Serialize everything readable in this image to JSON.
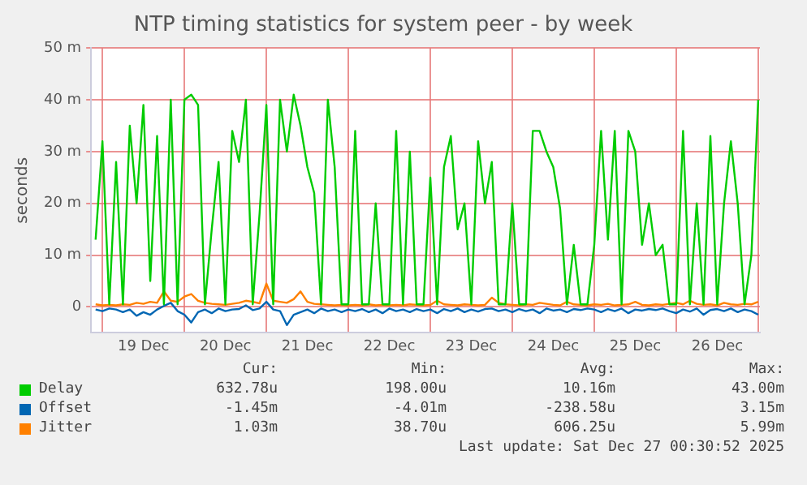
{
  "chart_data": {
    "type": "line",
    "title": "NTP timing statistics for system peer - by week",
    "ylabel": "seconds",
    "x": [
      "2025-12-18T22:00",
      "2025-12-19T00:00",
      "2025-12-19T02:00",
      "2025-12-19T04:00",
      "2025-12-19T06:00",
      "2025-12-19T08:00",
      "2025-12-19T10:00",
      "2025-12-19T12:00",
      "2025-12-19T14:00",
      "2025-12-19T16:00",
      "2025-12-19T18:00",
      "2025-12-19T20:00",
      "2025-12-19T22:00",
      "2025-12-20T00:00",
      "2025-12-20T02:00",
      "2025-12-20T04:00",
      "2025-12-20T06:00",
      "2025-12-20T08:00",
      "2025-12-20T10:00",
      "2025-12-20T12:00",
      "2025-12-20T14:00",
      "2025-12-20T16:00",
      "2025-12-20T18:00",
      "2025-12-20T20:00",
      "2025-12-20T22:00",
      "2025-12-21T00:00",
      "2025-12-21T02:00",
      "2025-12-21T04:00",
      "2025-12-21T06:00",
      "2025-12-21T08:00",
      "2025-12-21T10:00",
      "2025-12-21T12:00",
      "2025-12-21T14:00",
      "2025-12-21T16:00",
      "2025-12-21T18:00",
      "2025-12-21T20:00",
      "2025-12-21T22:00",
      "2025-12-22T00:00",
      "2025-12-22T02:00",
      "2025-12-22T04:00",
      "2025-12-22T06:00",
      "2025-12-22T08:00",
      "2025-12-22T10:00",
      "2025-12-22T12:00",
      "2025-12-22T14:00",
      "2025-12-22T16:00",
      "2025-12-22T18:00",
      "2025-12-22T20:00",
      "2025-12-22T22:00",
      "2025-12-23T00:00",
      "2025-12-23T02:00",
      "2025-12-23T04:00",
      "2025-12-23T06:00",
      "2025-12-23T08:00",
      "2025-12-23T10:00",
      "2025-12-23T12:00",
      "2025-12-23T14:00",
      "2025-12-23T16:00",
      "2025-12-23T18:00",
      "2025-12-23T20:00",
      "2025-12-23T22:00",
      "2025-12-24T00:00",
      "2025-12-24T02:00",
      "2025-12-24T04:00",
      "2025-12-24T06:00",
      "2025-12-24T08:00",
      "2025-12-24T10:00",
      "2025-12-24T12:00",
      "2025-12-24T14:00",
      "2025-12-24T16:00",
      "2025-12-24T18:00",
      "2025-12-24T20:00",
      "2025-12-24T22:00",
      "2025-12-25T00:00",
      "2025-12-25T02:00",
      "2025-12-25T04:00",
      "2025-12-25T06:00",
      "2025-12-25T08:00",
      "2025-12-25T10:00",
      "2025-12-25T12:00",
      "2025-12-25T14:00",
      "2025-12-25T16:00",
      "2025-12-25T18:00",
      "2025-12-25T20:00",
      "2025-12-25T22:00",
      "2025-12-26T00:00",
      "2025-12-26T02:00",
      "2025-12-26T04:00",
      "2025-12-26T06:00",
      "2025-12-26T08:00",
      "2025-12-26T10:00",
      "2025-12-26T12:00",
      "2025-12-26T14:00",
      "2025-12-26T16:00",
      "2025-12-26T18:00",
      "2025-12-26T20:00",
      "2025-12-26T22:00",
      "2025-12-27T00:00"
    ],
    "series": [
      {
        "name": "Delay",
        "color": "#00cc00",
        "values": [
          13,
          32,
          0.5,
          28,
          0.5,
          35,
          20,
          39,
          5,
          33,
          0.5,
          40,
          0.5,
          40,
          41,
          39,
          0.5,
          15,
          28,
          0.5,
          34,
          28,
          40,
          0.5,
          18,
          39,
          0.5,
          40,
          30,
          41,
          35,
          27,
          22,
          0.5,
          40,
          27,
          0.5,
          0.5,
          34,
          0.5,
          0.5,
          20,
          0.5,
          0.5,
          34,
          0.5,
          30,
          0.5,
          0.5,
          25,
          0.5,
          27,
          33,
          15,
          20,
          0.5,
          32,
          20,
          28,
          0.5,
          0.5,
          20,
          0.5,
          0.5,
          34,
          34,
          30,
          27,
          19,
          0.5,
          12,
          0.5,
          0.5,
          12,
          34,
          13,
          34,
          0.5,
          34,
          30,
          12,
          20,
          10,
          12,
          0.5,
          0.5,
          34,
          0.5,
          20,
          0.5,
          33,
          0.5,
          20,
          32,
          20,
          0.5,
          10,
          40
        ]
      },
      {
        "name": "Offset",
        "color": "#0066b3",
        "values": [
          -0.5,
          -0.8,
          -0.3,
          -0.5,
          -1.0,
          -0.5,
          -1.7,
          -1.0,
          -1.5,
          -0.5,
          0.2,
          0.8,
          -0.8,
          -1.5,
          -3.0,
          -1.0,
          -0.5,
          -1.2,
          -0.3,
          -0.8,
          -0.5,
          -0.4,
          0.3,
          -0.6,
          -0.3,
          1.0,
          -0.5,
          -0.8,
          -3.5,
          -1.5,
          -1.0,
          -0.5,
          -1.2,
          -0.3,
          -0.8,
          -0.5,
          -1.0,
          -0.5,
          -0.8,
          -0.4,
          -1.0,
          -0.5,
          -1.2,
          -0.3,
          -0.8,
          -0.5,
          -1.0,
          -0.4,
          -0.8,
          -0.5,
          -1.2,
          -0.4,
          -0.8,
          -0.3,
          -1.0,
          -0.5,
          -0.9,
          -0.4,
          -0.3,
          -0.8,
          -0.5,
          -1.0,
          -0.4,
          -0.8,
          -0.5,
          -1.2,
          -0.3,
          -0.7,
          -0.5,
          -1.0,
          -0.4,
          -0.6,
          -0.3,
          -0.5,
          -1.0,
          -0.4,
          -0.8,
          -0.3,
          -1.2,
          -0.5,
          -0.7,
          -0.4,
          -0.6,
          -0.3,
          -0.8,
          -1.2,
          -0.5,
          -0.9,
          -0.3,
          -1.5,
          -0.6,
          -0.4,
          -0.8,
          -0.3,
          -1.0,
          -0.5,
          -0.8,
          -1.5
        ]
      },
      {
        "name": "Jitter",
        "color": "#ff8000",
        "values": [
          0.5,
          0.3,
          0.4,
          0.3,
          0.5,
          0.4,
          0.8,
          0.6,
          1.0,
          0.8,
          3.0,
          1.2,
          1.0,
          2.0,
          2.5,
          1.2,
          0.8,
          0.6,
          0.5,
          0.4,
          0.6,
          0.8,
          1.2,
          1.0,
          0.7,
          4.5,
          1.2,
          1.0,
          0.8,
          1.5,
          3.0,
          1.0,
          0.6,
          0.5,
          0.4,
          0.3,
          0.4,
          0.3,
          0.4,
          0.3,
          0.5,
          0.3,
          0.4,
          0.3,
          0.4,
          0.3,
          0.5,
          0.4,
          0.3,
          0.4,
          1.2,
          0.5,
          0.4,
          0.3,
          0.5,
          0.4,
          0.3,
          0.4,
          1.8,
          0.8,
          0.5,
          0.4,
          0.3,
          0.5,
          0.4,
          0.8,
          0.6,
          0.4,
          0.3,
          1.0,
          0.5,
          0.4,
          0.3,
          0.5,
          0.4,
          0.6,
          0.3,
          0.4,
          0.5,
          1.0,
          0.4,
          0.3,
          0.5,
          0.4,
          0.6,
          0.8,
          0.5,
          1.2,
          0.6,
          0.4,
          0.5,
          0.3,
          0.8,
          0.5,
          0.4,
          0.6,
          0.5,
          1.0
        ]
      }
    ],
    "xlim": [
      "2025-12-18T20:40",
      "2025-12-27T00:30"
    ],
    "xticks": [
      {
        "value": "2025-12-19T00:00",
        "label": null
      },
      {
        "value": "2025-12-19T12:00",
        "label": "19 Dec"
      },
      {
        "value": "2025-12-20T00:00",
        "label": null
      },
      {
        "value": "2025-12-20T12:00",
        "label": "20 Dec"
      },
      {
        "value": "2025-12-21T00:00",
        "label": null
      },
      {
        "value": "2025-12-21T12:00",
        "label": "21 Dec"
      },
      {
        "value": "2025-12-22T00:00",
        "label": null
      },
      {
        "value": "2025-12-22T12:00",
        "label": "22 Dec"
      },
      {
        "value": "2025-12-23T00:00",
        "label": null
      },
      {
        "value": "2025-12-23T12:00",
        "label": "23 Dec"
      },
      {
        "value": "2025-12-24T00:00",
        "label": null
      },
      {
        "value": "2025-12-24T12:00",
        "label": "24 Dec"
      },
      {
        "value": "2025-12-25T00:00",
        "label": null
      },
      {
        "value": "2025-12-25T12:00",
        "label": "25 Dec"
      },
      {
        "value": "2025-12-26T00:00",
        "label": null
      },
      {
        "value": "2025-12-26T12:00",
        "label": "26 Dec"
      },
      {
        "value": "2025-12-27T00:00",
        "label": null
      }
    ],
    "ylim": [
      -5,
      50
    ],
    "yticks": [
      0,
      {
        "value": 10,
        "label": "10 m"
      },
      {
        "value": 20,
        "label": "20 m"
      },
      {
        "value": 30,
        "label": "30 m"
      },
      {
        "value": 40,
        "label": "40 m"
      },
      {
        "value": 50,
        "label": "50 m"
      }
    ],
    "grid": true,
    "legend": "bottom",
    "marker": "none",
    "line_style": "solid",
    "annotations": [
      "Cur:",
      "Min:",
      "Avg:",
      "Max:",
      "632.78u",
      "198.00u",
      "10.16m",
      "43.00m",
      "-1.45m",
      "-4.01m",
      "-238.58u",
      "3.15m",
      "1.03m",
      "38.70u",
      "606.25u",
      "5.99m",
      "Last update: Sat Dec 27 00:30:52 2025"
    ]
  }
}
